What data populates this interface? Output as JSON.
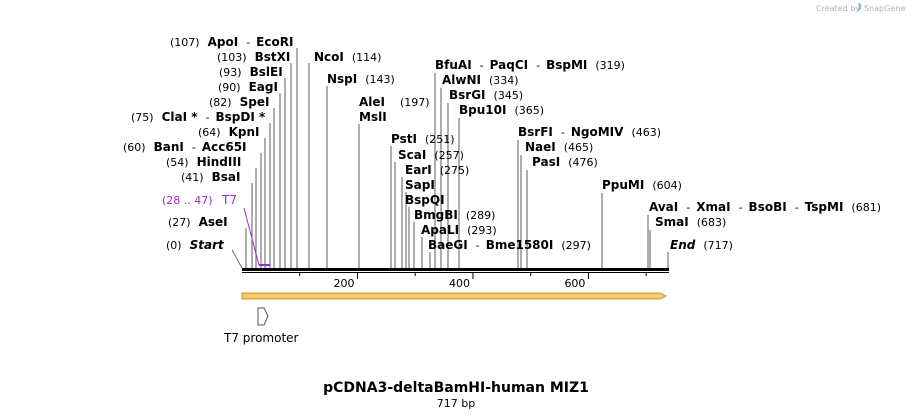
{
  "watermark": "Created by",
  "brand": "SnapGene",
  "title": "pCDNA3-deltaBamHI-human MIZ1",
  "subtitle": "717 bp",
  "length": 717,
  "axis_ticks": [
    "200",
    "400",
    "600"
  ],
  "feature_label": "T7 promoter",
  "t7_label": {
    "name": "T7",
    "range": "(28 .. 47)",
    "color": "#9b30d0"
  },
  "colors": {
    "line": "#000000",
    "orf_fill": "#f2c96b",
    "orf_stroke": "#c9952f",
    "t7": "#9b30d0"
  },
  "sites": [
    {
      "pos": "(0)",
      "names": [
        "Start"
      ],
      "site": 0
    },
    {
      "pos": "(27)",
      "names": [
        "AseI"
      ],
      "site": 27
    },
    {
      "pos": "(41)",
      "names": [
        "BsaI"
      ],
      "site": 41
    },
    {
      "pos": "(54)",
      "names": [
        "HindIII"
      ],
      "site": 54
    },
    {
      "pos": "(60)",
      "names": [
        "BanI",
        "Acc65I"
      ],
      "site": 60
    },
    {
      "pos": "(64)",
      "names": [
        "KpnI"
      ],
      "site": 64
    },
    {
      "pos": "(75)",
      "names": [
        "ClaI *",
        "BspDI *"
      ],
      "site": 75
    },
    {
      "pos": "(82)",
      "names": [
        "SpeI"
      ],
      "site": 82
    },
    {
      "pos": "(90)",
      "names": [
        "EagI"
      ],
      "site": 90
    },
    {
      "pos": "(93)",
      "names": [
        "BslEI"
      ],
      "site": 93
    },
    {
      "pos": "(103)",
      "names": [
        "BstXI"
      ],
      "site": 103
    },
    {
      "pos": "(107)",
      "names": [
        "ApoI",
        "EcoRI"
      ],
      "site": 107
    },
    {
      "pos": "(114)",
      "names": [
        "NcoI"
      ],
      "site": 114
    },
    {
      "pos": "(143)",
      "names": [
        "NspI"
      ],
      "site": 143
    },
    {
      "pos": "(197)",
      "names": [
        "AleI",
        "MslI"
      ],
      "site": 197
    },
    {
      "pos": "(251)",
      "names": [
        "PstI"
      ],
      "site": 251
    },
    {
      "pos": "(257)",
      "names": [
        "ScaI"
      ],
      "site": 257
    },
    {
      "pos": "(275)",
      "names": [
        "EarI"
      ],
      "site": 275
    },
    {
      "pos": "",
      "names": [
        "SapI"
      ],
      "site": 275
    },
    {
      "pos": "",
      "names": [
        "BspQI"
      ],
      "site": 275
    },
    {
      "pos": "(289)",
      "names": [
        "BmgBI"
      ],
      "site": 289
    },
    {
      "pos": "(293)",
      "names": [
        "ApaLI"
      ],
      "site": 293
    },
    {
      "pos": "(297)",
      "names": [
        "BaeGI",
        "Bme1580I"
      ],
      "site": 297
    },
    {
      "pos": "(319)",
      "names": [
        "BfuAI",
        "PaqCI",
        "BspMI"
      ],
      "site": 319
    },
    {
      "pos": "(334)",
      "names": [
        "AlwNI"
      ],
      "site": 334
    },
    {
      "pos": "(345)",
      "names": [
        "BsrGI"
      ],
      "site": 345
    },
    {
      "pos": "(365)",
      "names": [
        "Bpu10I"
      ],
      "site": 365
    },
    {
      "pos": "(463)",
      "names": [
        "BsrFI",
        "NgoMIV"
      ],
      "site": 463
    },
    {
      "pos": "(465)",
      "names": [
        "NaeI"
      ],
      "site": 465
    },
    {
      "pos": "(476)",
      "names": [
        "PasI"
      ],
      "site": 476
    },
    {
      "pos": "(604)",
      "names": [
        "PpuMI"
      ],
      "site": 604
    },
    {
      "pos": "(681)",
      "names": [
        "AvaI",
        "XmaI",
        "BsoBI",
        "TspMI"
      ],
      "site": 681
    },
    {
      "pos": "(683)",
      "names": [
        "SmaI"
      ],
      "site": 683
    },
    {
      "pos": "(717)",
      "names": [
        "End"
      ],
      "site": 717
    }
  ]
}
